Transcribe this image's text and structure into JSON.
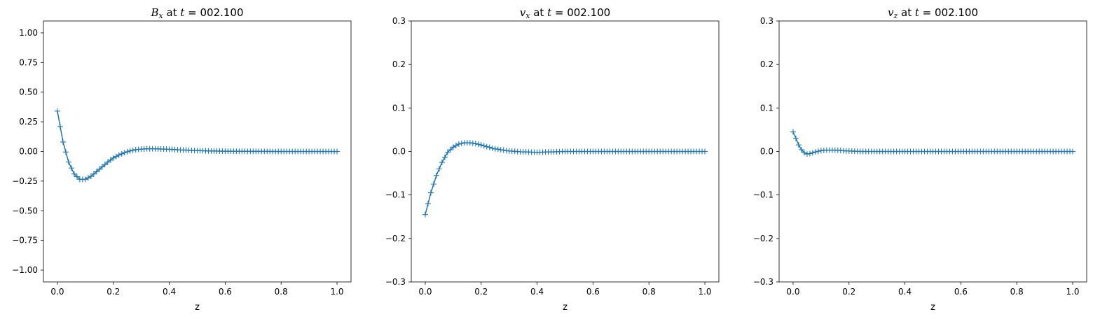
{
  "chart_data": [
    {
      "type": "line",
      "title": "B_x at t = 002.100",
      "title_parts": {
        "sym": "B",
        "sub": "x",
        "mid": " at ",
        "tvar": "t",
        "rest": " = 002.100"
      },
      "xlabel": "z",
      "ylabel": "",
      "xlim": [
        -0.05,
        1.05
      ],
      "ylim": [
        -1.1,
        1.1
      ],
      "xticks": [
        "0.0",
        "0.2",
        "0.4",
        "0.6",
        "0.8",
        "1.0"
      ],
      "yticks": [
        "−1.00",
        "−0.75",
        "−0.50",
        "−0.25",
        "0.00",
        "0.25",
        "0.50",
        "0.75",
        "1.00"
      ],
      "grid": false,
      "marker": "+",
      "color": "#1f77b4",
      "series": [
        {
          "x": [
            0.0,
            0.02,
            0.04,
            0.06,
            0.08,
            0.1,
            0.12,
            0.14,
            0.16,
            0.18,
            0.2,
            0.22,
            0.24,
            0.26,
            0.28,
            0.3,
            0.32,
            0.35,
            0.38,
            0.4,
            0.45,
            0.5,
            0.55,
            0.6,
            0.7,
            0.8,
            0.9,
            1.0
          ],
          "y": [
            0.34,
            0.08,
            -0.09,
            -0.19,
            -0.235,
            -0.235,
            -0.21,
            -0.17,
            -0.13,
            -0.09,
            -0.055,
            -0.03,
            -0.01,
            0.005,
            0.015,
            0.02,
            0.022,
            0.022,
            0.02,
            0.018,
            0.012,
            0.007,
            0.004,
            0.002,
            0.001,
            0.0,
            0.0,
            0.0
          ]
        }
      ]
    },
    {
      "type": "line",
      "title": "v_x at t = 002.100",
      "title_parts": {
        "sym": "v",
        "sub": "x",
        "mid": " at ",
        "tvar": "t",
        "rest": " = 002.100"
      },
      "xlabel": "z",
      "ylabel": "",
      "xlim": [
        -0.05,
        1.05
      ],
      "ylim": [
        -0.3,
        0.3
      ],
      "xticks": [
        "0.0",
        "0.2",
        "0.4",
        "0.6",
        "0.8",
        "1.0"
      ],
      "yticks": [
        "−0.3",
        "−0.2",
        "−0.1",
        "0.0",
        "0.1",
        "0.2",
        "0.3"
      ],
      "grid": false,
      "marker": "+",
      "color": "#1f77b4",
      "series": [
        {
          "x": [
            0.0,
            0.02,
            0.04,
            0.06,
            0.08,
            0.1,
            0.12,
            0.14,
            0.16,
            0.18,
            0.2,
            0.22,
            0.25,
            0.28,
            0.3,
            0.35,
            0.4,
            0.45,
            0.5,
            0.6,
            0.7,
            0.8,
            0.9,
            1.0
          ],
          "y": [
            -0.145,
            -0.095,
            -0.055,
            -0.025,
            -0.002,
            0.01,
            0.017,
            0.02,
            0.02,
            0.018,
            0.015,
            0.011,
            0.006,
            0.003,
            0.001,
            -0.001,
            -0.002,
            -0.001,
            0.0,
            0.0,
            0.0,
            0.0,
            0.0,
            0.0
          ]
        }
      ]
    },
    {
      "type": "line",
      "title": "v_z at t = 002.100",
      "title_parts": {
        "sym": "v",
        "sub": "z",
        "mid": " at ",
        "tvar": "t",
        "rest": " = 002.100"
      },
      "xlabel": "z",
      "ylabel": "",
      "xlim": [
        -0.05,
        1.05
      ],
      "ylim": [
        -0.3,
        0.3
      ],
      "xticks": [
        "0.0",
        "0.2",
        "0.4",
        "0.6",
        "0.8",
        "1.0"
      ],
      "yticks": [
        "−0.3",
        "−0.2",
        "−0.1",
        "0.0",
        "0.1",
        "0.2",
        "0.3"
      ],
      "grid": false,
      "marker": "+",
      "color": "#1f77b4",
      "series": [
        {
          "x": [
            0.0,
            0.01,
            0.02,
            0.03,
            0.04,
            0.05,
            0.06,
            0.08,
            0.1,
            0.12,
            0.15,
            0.2,
            0.25,
            0.3,
            0.4,
            0.5,
            0.6,
            0.7,
            0.8,
            0.9,
            1.0
          ],
          "y": [
            0.045,
            0.03,
            0.015,
            0.004,
            -0.003,
            -0.006,
            -0.005,
            -0.001,
            0.002,
            0.003,
            0.003,
            0.001,
            0.0,
            0.0,
            0.0,
            0.0,
            0.0,
            0.0,
            0.0,
            0.0,
            0.0
          ]
        }
      ]
    }
  ]
}
